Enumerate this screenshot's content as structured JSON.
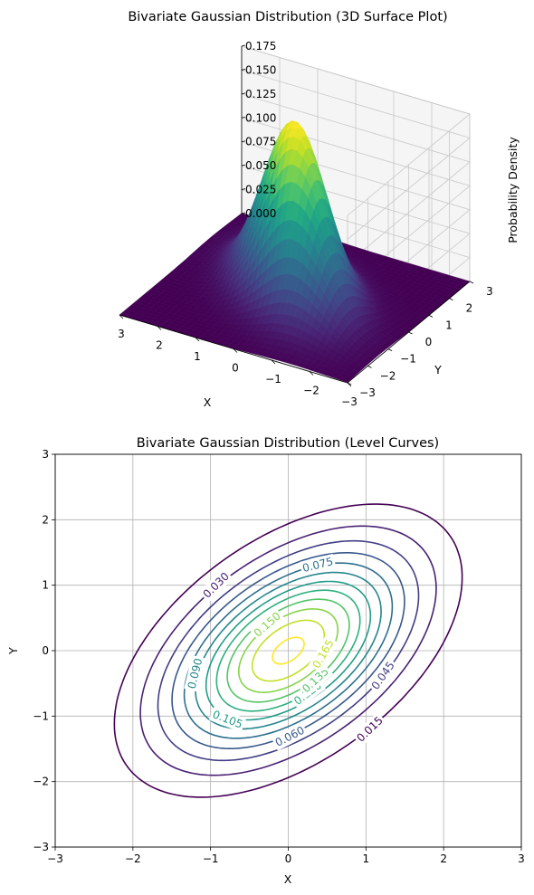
{
  "chart_data": [
    {
      "type": "surface",
      "title": "Bivariate Gaussian Distribution (3D Surface Plot)",
      "xlabel": "X",
      "ylabel": "Y",
      "zlabel": "Probability Density",
      "xlim": [
        -3,
        3
      ],
      "ylim": [
        -3,
        3
      ],
      "zlim": [
        0,
        0.175
      ],
      "x_ticks": [
        "−3",
        "−2",
        "−1",
        "0",
        "1",
        "2",
        "3"
      ],
      "y_ticks": [
        "−3",
        "−2",
        "−1",
        "0",
        "1",
        "2",
        "3"
      ],
      "z_ticks": [
        "0.000",
        "0.025",
        "0.050",
        "0.075",
        "0.100",
        "0.125",
        "0.150",
        "0.175"
      ],
      "colormap": "viridis",
      "peak_density": 0.184,
      "mean": [
        0,
        0
      ],
      "variance_x": 1,
      "variance_y": 1,
      "correlation": 0.5
    },
    {
      "type": "contour",
      "title": "Bivariate Gaussian Distribution (Level Curves)",
      "xlabel": "X",
      "ylabel": "Y",
      "xlim": [
        -3,
        3
      ],
      "ylim": [
        -3,
        3
      ],
      "x_ticks": [
        "−3",
        "−2",
        "−1",
        "0",
        "1",
        "2",
        "3"
      ],
      "y_ticks": [
        "−3",
        "−2",
        "−1",
        "0",
        "1",
        "2",
        "3"
      ],
      "grid": true,
      "colormap": "viridis",
      "levels": [
        0.015,
        0.03,
        0.045,
        0.06,
        0.075,
        0.09,
        0.105,
        0.12,
        0.135,
        0.15,
        0.165,
        0.18
      ],
      "level_labels": [
        {
          "text": "0.015",
          "x": 1.05,
          "y": -1.2
        },
        {
          "text": "0.030",
          "x": -0.93,
          "y": 1.0
        },
        {
          "text": "0.045",
          "x": 1.22,
          "y": -0.38
        },
        {
          "text": "0.060",
          "x": 0.02,
          "y": -1.31
        },
        {
          "text": "0.075",
          "x": 0.38,
          "y": 1.31
        },
        {
          "text": "0.090",
          "x": -1.2,
          "y": -0.35
        },
        {
          "text": "0.105",
          "x": -0.78,
          "y": -1.05
        },
        {
          "text": "0.120",
          "x": 0.25,
          "y": -0.65
        },
        {
          "text": "0.135",
          "x": 0.35,
          "y": -0.45
        },
        {
          "text": "0.150",
          "x": -0.27,
          "y": 0.4
        },
        {
          "text": "0.165",
          "x": 0.45,
          "y": -0.05
        }
      ]
    }
  ]
}
